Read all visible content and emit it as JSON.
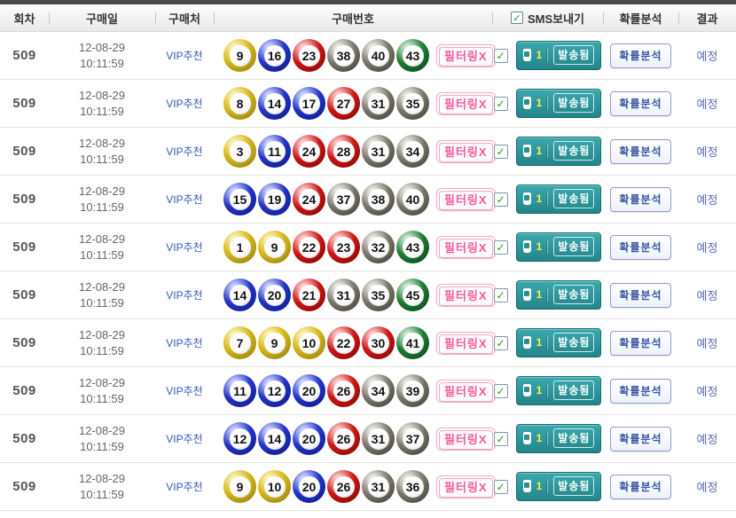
{
  "header": {
    "columns": [
      "회차",
      "구매일",
      "구매처",
      "구매번호",
      "SMS보내기",
      "확률분석",
      "결과"
    ],
    "sms_checkbox_checked": true,
    "check_glyph": "✓"
  },
  "ball_colors": {
    "range_1_10": "#d8b91a",
    "range_11_20": "#2334c8",
    "range_21_30": "#cf1515",
    "range_31_40": "#7b786c",
    "range_41_45": "#1c7c34"
  },
  "accent_colors": {
    "sms_button_teal": "#2a9296",
    "filter_pink": "#f8579d",
    "analysis_blue": "#3953a8",
    "result_blue": "#5b6bb0"
  },
  "rows": [
    {
      "round": "509",
      "date": "12-08-29",
      "time": "10:11:59",
      "seller": "VIP추천",
      "numbers": [
        9,
        16,
        23,
        38,
        40,
        43
      ],
      "filter_label": "필터링X",
      "sms_checked": true,
      "sms_count": "1",
      "sms_status": "발송됨",
      "analysis_label": "확률분석",
      "result": "예정"
    },
    {
      "round": "509",
      "date": "12-08-29",
      "time": "10:11:59",
      "seller": "VIP추천",
      "numbers": [
        8,
        14,
        17,
        27,
        31,
        35
      ],
      "filter_label": "필터링X",
      "sms_checked": true,
      "sms_count": "1",
      "sms_status": "발송됨",
      "analysis_label": "확률분석",
      "result": "예정"
    },
    {
      "round": "509",
      "date": "12-08-29",
      "time": "10:11:59",
      "seller": "VIP추천",
      "numbers": [
        3,
        11,
        24,
        28,
        31,
        34
      ],
      "filter_label": "필터링X",
      "sms_checked": true,
      "sms_count": "1",
      "sms_status": "발송됨",
      "analysis_label": "확률분석",
      "result": "예정"
    },
    {
      "round": "509",
      "date": "12-08-29",
      "time": "10:11:59",
      "seller": "VIP추천",
      "numbers": [
        15,
        19,
        24,
        37,
        38,
        40
      ],
      "filter_label": "필터링X",
      "sms_checked": true,
      "sms_count": "1",
      "sms_status": "발송됨",
      "analysis_label": "확률분석",
      "result": "예정"
    },
    {
      "round": "509",
      "date": "12-08-29",
      "time": "10:11:59",
      "seller": "VIP추천",
      "numbers": [
        1,
        9,
        22,
        23,
        32,
        43
      ],
      "filter_label": "필터링X",
      "sms_checked": true,
      "sms_count": "1",
      "sms_status": "발송됨",
      "analysis_label": "확률분석",
      "result": "예정"
    },
    {
      "round": "509",
      "date": "12-08-29",
      "time": "10:11:59",
      "seller": "VIP추천",
      "numbers": [
        14,
        20,
        21,
        31,
        35,
        45
      ],
      "filter_label": "필터링X",
      "sms_checked": true,
      "sms_count": "1",
      "sms_status": "발송됨",
      "analysis_label": "확률분석",
      "result": "예정"
    },
    {
      "round": "509",
      "date": "12-08-29",
      "time": "10:11:59",
      "seller": "VIP추천",
      "numbers": [
        7,
        9,
        10,
        22,
        30,
        41
      ],
      "filter_label": "필터링X",
      "sms_checked": true,
      "sms_count": "1",
      "sms_status": "발송됨",
      "analysis_label": "확률분석",
      "result": "예정"
    },
    {
      "round": "509",
      "date": "12-08-29",
      "time": "10:11:59",
      "seller": "VIP추천",
      "numbers": [
        11,
        12,
        20,
        26,
        34,
        39
      ],
      "filter_label": "필터링X",
      "sms_checked": true,
      "sms_count": "1",
      "sms_status": "발송됨",
      "analysis_label": "확률분석",
      "result": "예정"
    },
    {
      "round": "509",
      "date": "12-08-29",
      "time": "10:11:59",
      "seller": "VIP추천",
      "numbers": [
        12,
        14,
        20,
        26,
        31,
        37
      ],
      "filter_label": "필터링X",
      "sms_checked": true,
      "sms_count": "1",
      "sms_status": "발송됨",
      "analysis_label": "확률분석",
      "result": "예정"
    },
    {
      "round": "509",
      "date": "12-08-29",
      "time": "10:11:59",
      "seller": "VIP추천",
      "numbers": [
        9,
        10,
        20,
        26,
        31,
        36
      ],
      "filter_label": "필터링X",
      "sms_checked": true,
      "sms_count": "1",
      "sms_status": "발송됨",
      "analysis_label": "확률분석",
      "result": "예정"
    }
  ]
}
